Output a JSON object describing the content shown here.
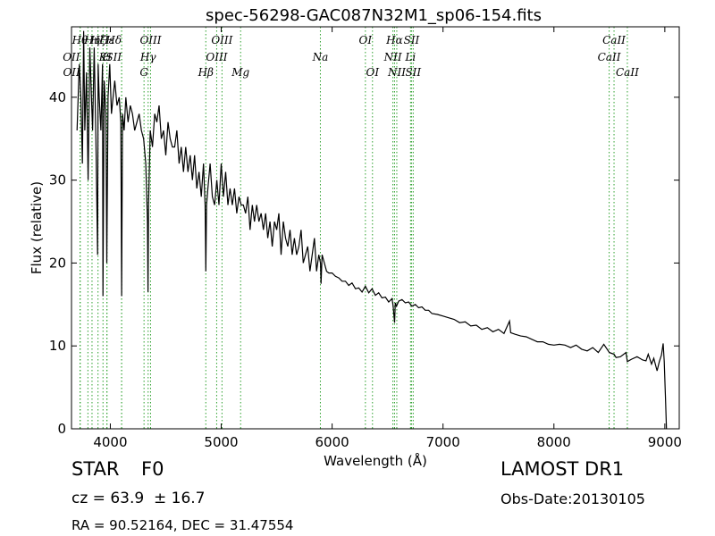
{
  "chart_data": {
    "type": "line",
    "title": "spec-56298-GAC087N32M1_sp06-154.fits",
    "xlabel": "Wavelength (Å)",
    "ylabel": "Flux (relative)",
    "xlim": [
      3650,
      9130
    ],
    "ylim": [
      0,
      48.5
    ],
    "xticks": [
      4000,
      5000,
      6000,
      7000,
      8000,
      9000
    ],
    "yticks": [
      0,
      10,
      20,
      30,
      40
    ],
    "grid": false,
    "series_color": "#000000",
    "line_color": "#2ca02c",
    "spectrum": {
      "x": [
        3700,
        3720,
        3735,
        3748,
        3760,
        3770,
        3785,
        3800,
        3815,
        3825,
        3840,
        3855,
        3870,
        3885,
        3890,
        3900,
        3915,
        3930,
        3934,
        3945,
        3960,
        3968,
        3980,
        3995,
        4010,
        4025,
        4040,
        4060,
        4080,
        4095,
        4102,
        4110,
        4125,
        4140,
        4160,
        4180,
        4200,
        4220,
        4240,
        4260,
        4280,
        4300,
        4320,
        4335,
        4340,
        4345,
        4360,
        4380,
        4400,
        4420,
        4440,
        4460,
        4480,
        4500,
        4520,
        4540,
        4560,
        4580,
        4600,
        4620,
        4640,
        4660,
        4680,
        4700,
        4720,
        4740,
        4760,
        4780,
        4800,
        4820,
        4840,
        4855,
        4861,
        4868,
        4880,
        4900,
        4920,
        4940,
        4960,
        4980,
        5000,
        5020,
        5040,
        5060,
        5080,
        5100,
        5120,
        5140,
        5160,
        5180,
        5200,
        5220,
        5240,
        5260,
        5280,
        5300,
        5320,
        5340,
        5360,
        5380,
        5400,
        5420,
        5440,
        5460,
        5480,
        5500,
        5520,
        5540,
        5560,
        5580,
        5600,
        5620,
        5640,
        5660,
        5680,
        5700,
        5720,
        5740,
        5760,
        5780,
        5800,
        5820,
        5840,
        5860,
        5880,
        5895,
        5900,
        5910,
        5930,
        5950,
        5970,
        6000,
        6030,
        6060,
        6090,
        6120,
        6150,
        6180,
        6210,
        6240,
        6270,
        6300,
        6330,
        6360,
        6390,
        6420,
        6450,
        6480,
        6510,
        6540,
        6550,
        6563,
        6570,
        6580,
        6600,
        6630,
        6660,
        6690,
        6720,
        6750,
        6780,
        6810,
        6840,
        6870,
        6900,
        6950,
        7000,
        7050,
        7100,
        7150,
        7200,
        7250,
        7300,
        7350,
        7400,
        7450,
        7500,
        7550,
        7600,
        7610,
        7650,
        7700,
        7750,
        7800,
        7850,
        7900,
        7950,
        8000,
        8050,
        8100,
        8150,
        8200,
        8250,
        8300,
        8350,
        8400,
        8450,
        8500,
        8542,
        8560,
        8600,
        8650,
        8662,
        8700,
        8750,
        8800,
        8830,
        8850,
        8880,
        8900,
        8930,
        8950,
        8970,
        8985,
        8995,
        9005,
        9015
      ],
      "y": [
        36,
        44,
        40,
        32,
        48,
        36,
        43,
        30,
        46,
        42,
        36,
        46,
        35,
        21,
        44,
        40,
        36,
        44,
        16,
        42,
        38,
        20,
        40,
        44,
        38,
        40,
        42,
        39,
        40,
        37,
        16,
        38,
        36,
        40,
        37,
        39,
        38,
        36,
        37,
        38,
        36,
        35,
        32,
        25,
        16.5,
        27,
        36,
        34,
        38,
        37,
        39,
        35,
        36,
        33,
        37,
        35,
        34,
        34,
        36,
        32,
        34,
        31,
        34,
        31,
        33,
        30,
        33,
        29,
        31,
        28,
        32,
        27,
        19,
        27,
        29,
        32,
        28,
        27,
        30,
        27,
        32,
        28,
        31,
        27,
        29,
        27,
        29,
        26,
        28,
        27,
        27,
        26,
        28,
        24,
        27,
        25,
        27,
        25,
        26,
        24,
        26,
        23,
        25,
        22,
        25,
        24,
        26,
        21,
        25,
        23,
        22,
        24,
        21,
        23,
        21,
        22,
        24,
        20,
        21,
        22,
        19,
        21,
        23,
        19,
        21,
        20,
        17.5,
        21,
        20,
        19,
        18.8,
        18.8,
        18.4,
        18.2,
        17.8,
        17.8,
        17.3,
        17.6,
        16.9,
        17,
        16.5,
        17.2,
        16.4,
        16.9,
        16.1,
        16.4,
        15.8,
        15.9,
        15.3,
        15.7,
        14.8,
        12.8,
        15.2,
        14.8,
        15.4,
        15.6,
        15.2,
        15.3,
        14.8,
        15,
        14.6,
        14.7,
        14.3,
        14.3,
        13.9,
        13.8,
        13.6,
        13.4,
        13.2,
        12.8,
        12.9,
        12.4,
        12.5,
        12,
        12.2,
        11.7,
        12,
        11.5,
        13,
        11.6,
        11.4,
        11.2,
        11.1,
        10.8,
        10.5,
        10.5,
        10.2,
        10.1,
        10.2,
        10.1,
        9.8,
        10.1,
        9.6,
        9.4,
        9.8,
        9.2,
        10.2,
        9.2,
        9,
        8.6,
        8.7,
        9.2,
        8.1,
        8.4,
        8.7,
        8.3,
        8.2,
        9,
        7.8,
        8.5,
        7,
        8.1,
        8.9,
        10.3,
        8.1,
        4,
        0
      ]
    },
    "lines": [
      {
        "wl": 3727,
        "label": "OII",
        "tier": 1,
        "anchor": "end"
      },
      {
        "wl": 3729,
        "label": "OII",
        "tier": 2,
        "anchor": "end"
      },
      {
        "wl": 3798,
        "label": "Hθ",
        "tier": 0,
        "anchor": "end"
      },
      {
        "wl": 3835,
        "label": "Hη",
        "tier": 0,
        "anchor": "middle"
      },
      {
        "wl": 3889,
        "label": "Hζ",
        "tier": 0,
        "anchor": "middle"
      },
      {
        "wl": 3934,
        "label": "K",
        "tier": 1,
        "anchor": "middle"
      },
      {
        "wl": 3969,
        "label": "H",
        "tier": 1,
        "anchor": "middle"
      },
      {
        "wl": 3970,
        "label": "Hε",
        "tier": 0,
        "anchor": "middle"
      },
      {
        "wl": 4102,
        "label": "Hδ",
        "tier": 0,
        "anchor": "end"
      },
      {
        "wl": 4102,
        "label": "SII",
        "tier": 1,
        "anchor": "end"
      },
      {
        "wl": 4304,
        "label": "G",
        "tier": 2,
        "anchor": "middle"
      },
      {
        "wl": 4341,
        "label": "Hγ",
        "tier": 1,
        "anchor": "middle"
      },
      {
        "wl": 4363,
        "label": "OIII",
        "tier": 0,
        "anchor": "middle"
      },
      {
        "wl": 4861,
        "label": "Hβ",
        "tier": 2,
        "anchor": "middle"
      },
      {
        "wl": 4959,
        "label": "OIII",
        "tier": 1,
        "anchor": "middle"
      },
      {
        "wl": 5007,
        "label": "OIII",
        "tier": 0,
        "anchor": "middle"
      },
      {
        "wl": 5175,
        "label": "Mg",
        "tier": 2,
        "anchor": "middle"
      },
      {
        "wl": 5894,
        "label": "Na",
        "tier": 1,
        "anchor": "middle"
      },
      {
        "wl": 6300,
        "label": "OI",
        "tier": 0,
        "anchor": "middle"
      },
      {
        "wl": 6364,
        "label": "OI",
        "tier": 2,
        "anchor": "middle"
      },
      {
        "wl": 6548,
        "label": "NII",
        "tier": 1,
        "anchor": "middle"
      },
      {
        "wl": 6563,
        "label": "Hα",
        "tier": 0,
        "anchor": "middle"
      },
      {
        "wl": 6583,
        "label": "NII",
        "tier": 2,
        "anchor": "middle"
      },
      {
        "wl": 6707,
        "label": "Li",
        "tier": 1,
        "anchor": "middle"
      },
      {
        "wl": 6716,
        "label": "SII",
        "tier": 0,
        "anchor": "middle"
      },
      {
        "wl": 6731,
        "label": "SII",
        "tier": 2,
        "anchor": "middle"
      },
      {
        "wl": 8498,
        "label": "CaII",
        "tier": 1,
        "anchor": "middle"
      },
      {
        "wl": 8542,
        "label": "CaII",
        "tier": 0,
        "anchor": "middle"
      },
      {
        "wl": 8662,
        "label": "CaII",
        "tier": 2,
        "anchor": "middle"
      }
    ]
  },
  "info": {
    "object_class": "STAR",
    "subclass": "F0",
    "redshift_text": "cz = 63.9  ± 16.7",
    "coords_text": "RA = 90.52164, DEC = 31.47554",
    "survey": "LAMOST DR1",
    "obs_date": "Obs-Date:20130105"
  }
}
